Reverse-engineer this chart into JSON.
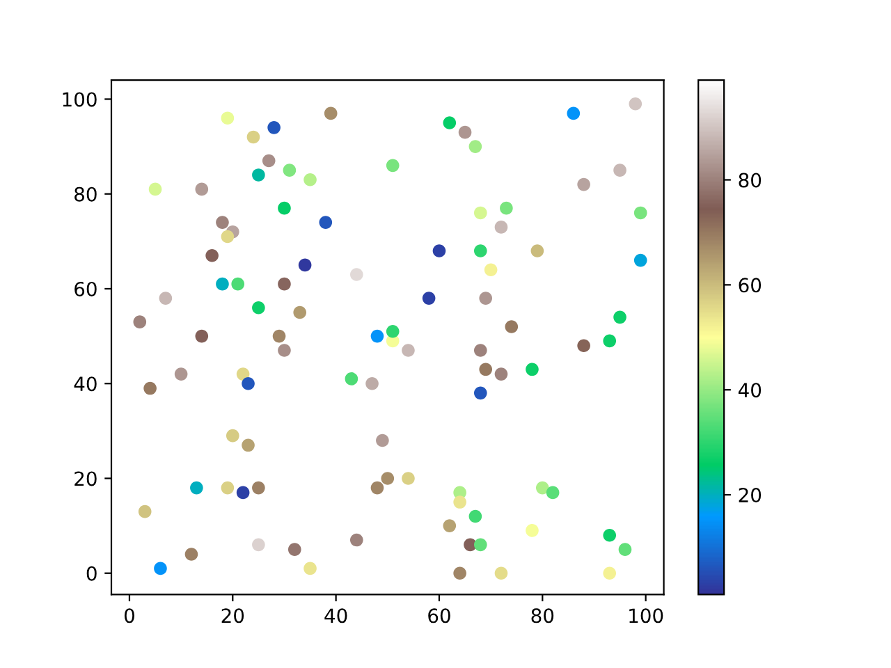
{
  "chart_data": {
    "type": "scatter",
    "marker": "circle",
    "grid": false,
    "xlim": [
      -3.5,
      103.5
    ],
    "ylim": [
      -4.5,
      104
    ],
    "xticks": [
      0,
      20,
      40,
      60,
      80,
      100
    ],
    "yticks": [
      0,
      20,
      40,
      60,
      80,
      100
    ],
    "clim": [
      1,
      99
    ],
    "cticks": [
      20,
      40,
      60,
      80
    ],
    "x": [
      19,
      28,
      39,
      24,
      27,
      25,
      31,
      35,
      5,
      14,
      30,
      38,
      18,
      20,
      19,
      16,
      34,
      44,
      18,
      21,
      30,
      7,
      25,
      33,
      2,
      14,
      29,
      30,
      10,
      4,
      22,
      23,
      43,
      47,
      48,
      51,
      51,
      20,
      23,
      49,
      13,
      19,
      22,
      25,
      48,
      50,
      3,
      25,
      32,
      44,
      12,
      6,
      35,
      62,
      65,
      67,
      86,
      98,
      51,
      95,
      88,
      73,
      68,
      99,
      72,
      60,
      68,
      79,
      70,
      99,
      58,
      69,
      95,
      74,
      93,
      88,
      54,
      68,
      69,
      72,
      78,
      68,
      54,
      64,
      64,
      67,
      62,
      66,
      68,
      78,
      80,
      82,
      93,
      96,
      64,
      72,
      93
    ],
    "values": [
      96,
      94,
      97,
      92,
      87,
      84,
      85,
      83,
      81,
      81,
      77,
      74,
      74,
      72,
      71,
      67,
      65,
      63,
      61,
      61,
      61,
      58,
      56,
      55,
      53,
      50,
      50,
      47,
      42,
      39,
      42,
      40,
      41,
      40,
      50,
      49,
      51,
      29,
      27,
      28,
      18,
      18,
      17,
      18,
      18,
      20,
      13,
      6,
      5,
      7,
      4,
      1,
      1,
      95,
      93,
      90,
      97,
      99,
      86,
      85,
      82,
      77,
      76,
      76,
      73,
      68,
      68,
      68,
      64,
      66,
      58,
      58,
      54,
      52,
      49,
      48,
      47,
      47,
      43,
      42,
      43,
      38,
      20,
      17,
      15,
      12,
      10,
      6,
      6,
      9,
      18,
      17,
      8,
      5,
      0,
      0,
      0
    ],
    "cvalues": [
      48,
      6,
      67,
      57,
      82,
      22,
      38,
      43,
      46,
      84,
      26,
      6,
      80,
      85,
      56,
      75,
      2,
      93,
      20,
      33,
      76,
      88,
      27,
      65,
      80,
      75,
      68,
      82,
      83,
      70,
      56,
      6,
      33,
      86,
      15,
      49,
      30,
      58,
      64,
      84,
      20,
      57,
      3,
      69,
      68,
      67,
      59,
      92,
      78,
      80,
      69,
      15,
      54,
      26,
      83,
      41,
      15,
      90,
      37,
      88,
      85,
      37,
      46,
      37,
      88,
      3,
      30,
      60,
      52,
      18,
      3,
      83,
      27,
      70,
      27,
      73,
      88,
      80,
      70,
      80,
      27,
      6,
      57,
      42,
      54,
      32,
      64,
      75,
      35,
      49,
      42,
      34,
      27,
      35,
      68,
      55,
      52
    ]
  }
}
